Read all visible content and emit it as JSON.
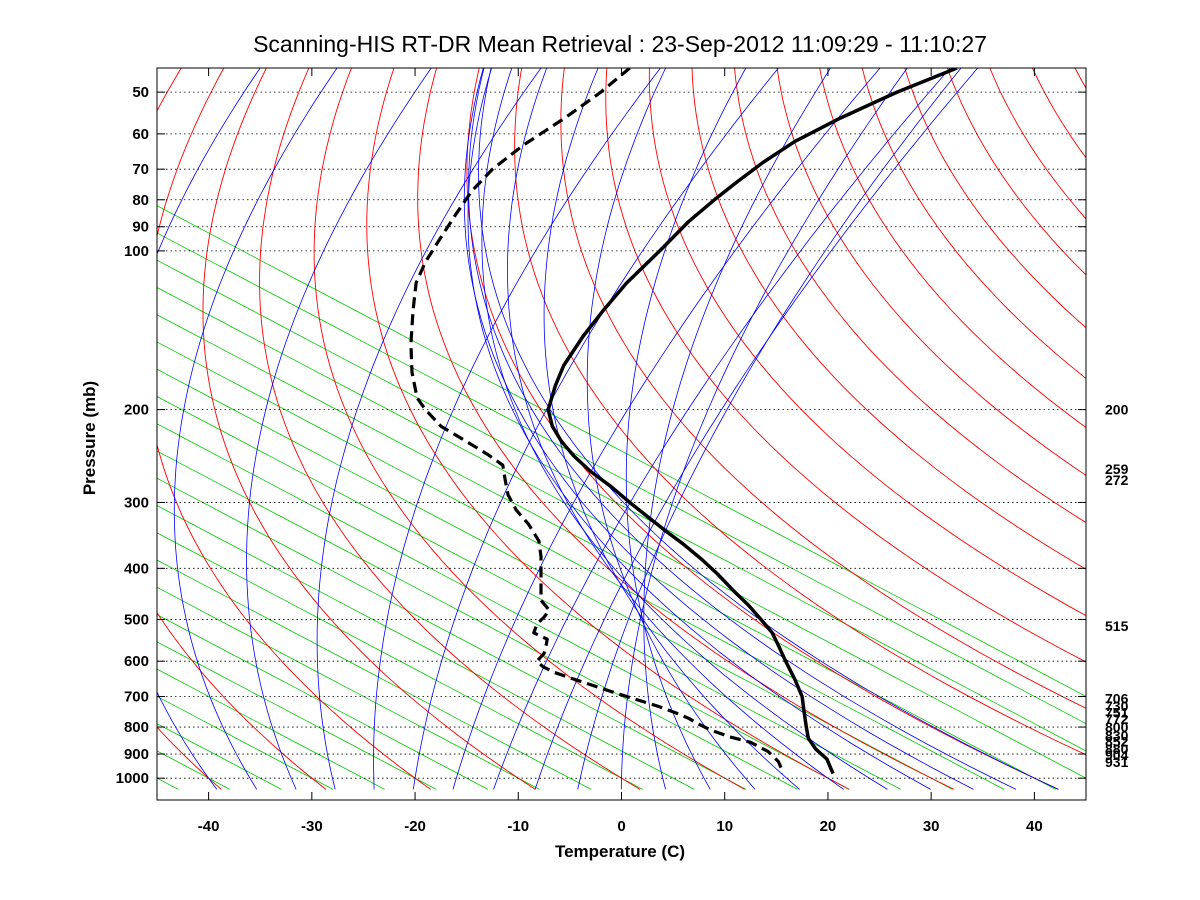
{
  "chart_data": {
    "type": "line",
    "title": "Scanning-HIS RT-DR Mean Retrieval : 23-Sep-2012 11:09:29 - 11:10:27",
    "xlabel": "Temperature (C)",
    "ylabel": "Pressure (mb)",
    "xlim": [
      -45,
      45
    ],
    "ylim": [
      45,
      1100
    ],
    "y_scale": "log",
    "grid": "dotted horizontal at pressure ticks",
    "x_ticks": [
      -40,
      -30,
      -20,
      -10,
      0,
      10,
      20,
      30,
      40
    ],
    "x_tick_labels": [
      "-40",
      "-30",
      "-20",
      "-10",
      "0",
      "10",
      "20",
      "30",
      "40"
    ],
    "y_ticks": [
      50,
      60,
      70,
      80,
      90,
      100,
      200,
      300,
      400,
      500,
      600,
      700,
      800,
      900,
      1000
    ],
    "y_tick_labels": [
      "50",
      "60",
      "70",
      "80",
      "90",
      "100",
      "200",
      "300",
      "400",
      "500",
      "600",
      "700",
      "800",
      "900",
      "1000"
    ],
    "right_labels": [
      {
        "pressure": 200,
        "text": "200"
      },
      {
        "pressure": 259,
        "text": "259"
      },
      {
        "pressure": 272,
        "text": "272"
      },
      {
        "pressure": 515,
        "text": "515"
      },
      {
        "pressure": 706,
        "text": "706"
      },
      {
        "pressure": 730,
        "text": "730"
      },
      {
        "pressure": 751,
        "text": "751"
      },
      {
        "pressure": 772,
        "text": "772"
      },
      {
        "pressure": 800,
        "text": "800"
      },
      {
        "pressure": 830,
        "text": "830"
      },
      {
        "pressure": 852,
        "text": "852"
      },
      {
        "pressure": 880,
        "text": "880"
      },
      {
        "pressure": 904,
        "text": "904"
      },
      {
        "pressure": 931,
        "text": "931"
      }
    ],
    "series": [
      {
        "name": "temperature",
        "style": "solid",
        "color": "#000000",
        "points": [
          [
            32.5,
            45
          ],
          [
            26.7,
            50
          ],
          [
            21.2,
            56
          ],
          [
            16.8,
            62
          ],
          [
            13.7,
            68
          ],
          [
            11.2,
            74
          ],
          [
            9.0,
            80
          ],
          [
            6.5,
            88
          ],
          [
            3.7,
            100
          ],
          [
            0.5,
            115
          ],
          [
            -1.8,
            130
          ],
          [
            -3.7,
            145
          ],
          [
            -5.6,
            165
          ],
          [
            -6.4,
            180
          ],
          [
            -7.1,
            200
          ],
          [
            -6.7,
            215
          ],
          [
            -5.8,
            230
          ],
          [
            -4.6,
            245
          ],
          [
            -3.0,
            262
          ],
          [
            -1.0,
            280
          ],
          [
            0.8,
            300
          ],
          [
            2.6,
            320
          ],
          [
            4.3,
            340
          ],
          [
            6.0,
            360
          ],
          [
            7.8,
            385
          ],
          [
            9.3,
            410
          ],
          [
            10.8,
            440
          ],
          [
            12.3,
            470
          ],
          [
            13.5,
            500
          ],
          [
            14.6,
            530
          ],
          [
            15.2,
            560
          ],
          [
            15.9,
            600
          ],
          [
            16.8,
            650
          ],
          [
            17.5,
            700
          ],
          [
            17.7,
            750
          ],
          [
            17.9,
            800
          ],
          [
            18.1,
            840
          ],
          [
            18.8,
            880
          ],
          [
            19.9,
            920
          ],
          [
            20.3,
            960
          ],
          [
            20.5,
            980
          ]
        ]
      },
      {
        "name": "dewpoint",
        "style": "dashed",
        "color": "#000000",
        "points": [
          [
            0.8,
            45
          ],
          [
            -2.0,
            50
          ],
          [
            -5.5,
            56
          ],
          [
            -9.5,
            63
          ],
          [
            -12.5,
            70
          ],
          [
            -14.5,
            77
          ],
          [
            -16.0,
            85
          ],
          [
            -17.6,
            95
          ],
          [
            -19.0,
            105
          ],
          [
            -19.9,
            115
          ],
          [
            -20.2,
            130
          ],
          [
            -20.4,
            150
          ],
          [
            -20.3,
            170
          ],
          [
            -19.8,
            190
          ],
          [
            -19.0,
            200
          ],
          [
            -17.5,
            215
          ],
          [
            -15.0,
            230
          ],
          [
            -13.0,
            243
          ],
          [
            -11.5,
            255
          ],
          [
            -11.3,
            270
          ],
          [
            -11.0,
            290
          ],
          [
            -10.2,
            310
          ],
          [
            -9.0,
            330
          ],
          [
            -8.0,
            355
          ],
          [
            -7.8,
            380
          ],
          [
            -7.8,
            420
          ],
          [
            -7.8,
            460
          ],
          [
            -7.0,
            480
          ],
          [
            -7.5,
            495
          ],
          [
            -8.2,
            510
          ],
          [
            -8.5,
            530
          ],
          [
            -7.2,
            545
          ],
          [
            -7.3,
            560
          ],
          [
            -7.5,
            580
          ],
          [
            -8.2,
            600
          ],
          [
            -7.6,
            615
          ],
          [
            -6.5,
            630
          ],
          [
            -4.5,
            650
          ],
          [
            -1.5,
            680
          ],
          [
            1.0,
            705
          ],
          [
            3.5,
            730
          ],
          [
            5.5,
            755
          ],
          [
            6.5,
            770
          ],
          [
            7.5,
            790
          ],
          [
            8.6,
            810
          ],
          [
            10.5,
            835
          ],
          [
            12.5,
            855
          ],
          [
            14.2,
            890
          ],
          [
            15.2,
            930
          ],
          [
            15.6,
            970
          ],
          [
            15.5,
            980
          ]
        ]
      }
    ]
  },
  "colors": {
    "dry_adiabat": "#ff0000",
    "moist_adiabat": "#0000ff",
    "isotherm": "#00cc00",
    "profile": "#000000"
  }
}
